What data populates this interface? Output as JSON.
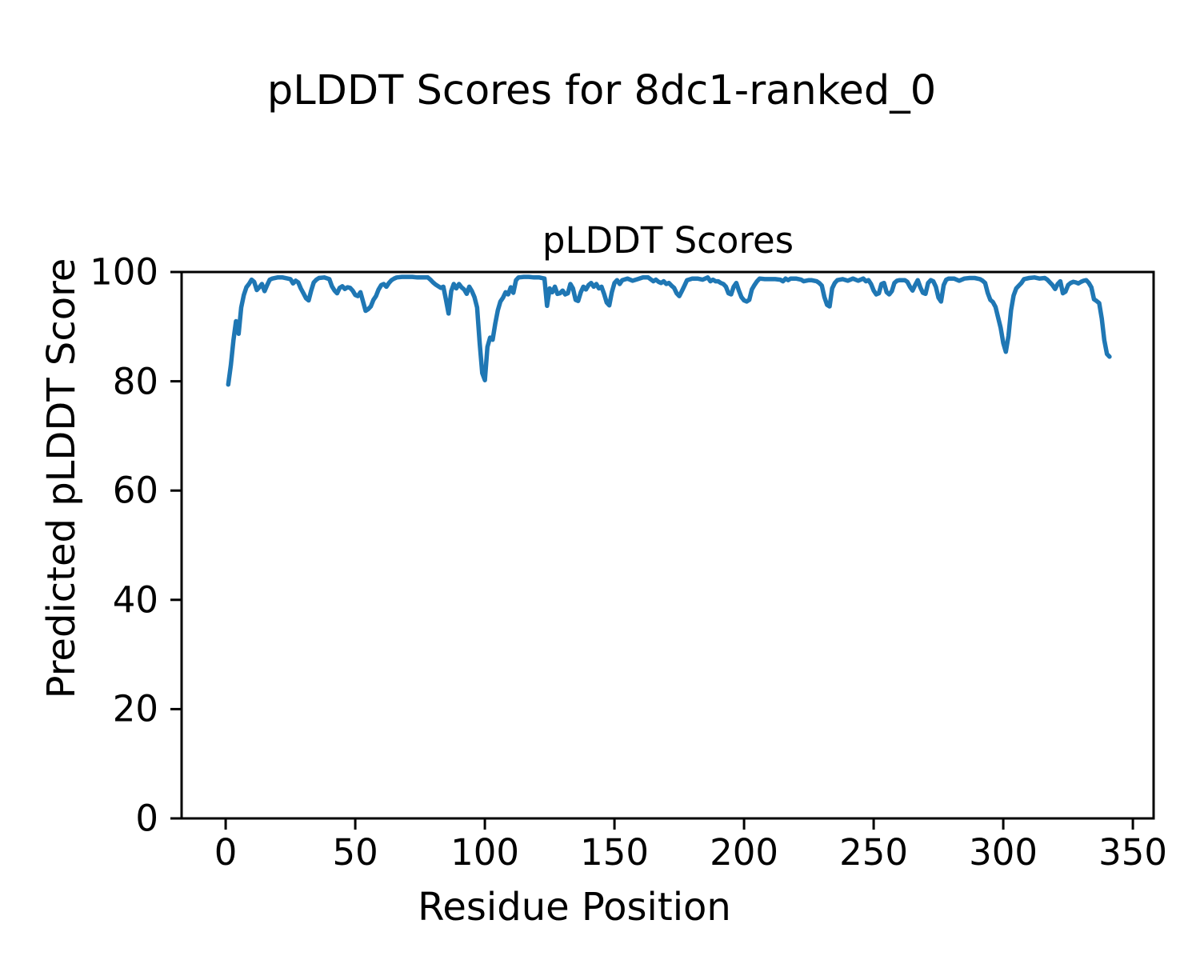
{
  "suptitle": "pLDDT Scores for 8dc1-ranked_0",
  "chart_data": {
    "type": "line",
    "title": "pLDDT Scores",
    "xlabel": "Residue Position",
    "ylabel": "Predicted pLDDT Score",
    "xlim": [
      -17,
      358
    ],
    "ylim": [
      0,
      100
    ],
    "xticks": [
      0,
      50,
      100,
      150,
      200,
      250,
      300,
      350
    ],
    "yticks": [
      0,
      20,
      40,
      60,
      80,
      100
    ],
    "grid": false,
    "legend_position": "none",
    "line_color": "#1f77b4",
    "axis_color": "#000000",
    "series": [
      {
        "name": "pLDDT",
        "x": [
          1,
          2,
          3,
          4,
          5,
          6,
          7,
          8,
          9,
          10,
          11,
          12,
          13,
          14,
          15,
          16,
          17,
          18,
          20,
          22,
          24,
          25,
          26,
          27,
          28,
          29,
          30,
          31,
          32,
          33,
          34,
          35,
          36,
          38,
          40,
          41,
          42,
          43,
          44,
          45,
          46,
          47,
          48,
          49,
          50,
          51,
          52,
          53,
          54,
          55,
          56,
          57,
          58,
          59,
          60,
          61,
          62,
          63,
          64,
          65,
          66,
          68,
          70,
          72,
          74,
          76,
          78,
          79,
          80,
          81,
          82,
          83,
          84,
          85,
          86,
          87,
          88,
          89,
          90,
          91,
          92,
          93,
          94,
          95,
          96,
          97,
          98,
          99,
          100,
          101,
          102,
          103,
          104,
          105,
          106,
          107,
          108,
          109,
          110,
          111,
          112,
          113,
          115,
          117,
          119,
          121,
          123,
          124,
          125,
          126,
          127,
          128,
          129,
          130,
          131,
          132,
          133,
          134,
          135,
          136,
          137,
          138,
          139,
          140,
          141,
          142,
          143,
          144,
          145,
          146,
          147,
          148,
          149,
          150,
          151,
          152,
          153,
          155,
          157,
          159,
          161,
          163,
          165,
          166,
          167,
          168,
          169,
          170,
          171,
          172,
          173,
          174,
          175,
          176,
          177,
          178,
          180,
          182,
          184,
          186,
          187,
          188,
          189,
          190,
          191,
          192,
          193,
          194,
          195,
          196,
          197,
          198,
          199,
          200,
          201,
          202,
          203,
          204,
          205,
          206,
          208,
          210,
          212,
          214,
          215,
          216,
          217,
          218,
          220,
          222,
          223,
          225,
          226,
          228,
          229,
          230,
          231,
          232,
          233,
          234,
          235,
          236,
          238,
          240,
          242,
          244,
          246,
          247,
          248,
          249,
          250,
          251,
          252,
          253,
          254,
          255,
          256,
          257,
          258,
          259,
          260,
          262,
          263,
          264,
          265,
          266,
          267,
          268,
          269,
          270,
          271,
          272,
          273,
          274,
          275,
          276,
          277,
          278,
          279,
          281,
          283,
          285,
          287,
          289,
          291,
          292,
          293,
          294,
          295,
          296,
          297,
          298,
          299,
          300,
          301,
          302,
          303,
          304,
          305,
          306,
          307,
          308,
          310,
          312,
          314,
          316,
          317,
          318,
          319,
          320,
          321,
          322,
          323,
          324,
          325,
          326,
          327,
          328,
          329,
          330,
          331,
          332,
          333,
          334,
          335,
          336,
          337,
          338,
          339,
          340,
          341
        ],
        "y": [
          79.4,
          83.0,
          87.5,
          91.0,
          88.7,
          93.5,
          95.8,
          97.2,
          97.8,
          98.6,
          98.2,
          96.7,
          97.2,
          97.8,
          96.5,
          97.6,
          98.6,
          98.8,
          99.0,
          99.0,
          98.8,
          98.7,
          97.9,
          98.4,
          98.1,
          97.0,
          96.1,
          95.2,
          94.8,
          96.6,
          98.1,
          98.6,
          98.9,
          99.0,
          98.7,
          97.4,
          96.6,
          96.1,
          97.1,
          97.4,
          96.9,
          97.2,
          97.1,
          96.6,
          95.8,
          95.6,
          96.3,
          94.6,
          92.9,
          93.2,
          93.7,
          94.9,
          95.6,
          96.8,
          97.6,
          97.8,
          97.3,
          98.0,
          98.5,
          98.8,
          99.0,
          99.1,
          99.1,
          99.1,
          99.0,
          99.0,
          99.0,
          98.6,
          98.1,
          97.7,
          97.4,
          97.1,
          97.3,
          94.9,
          92.4,
          96.5,
          97.8,
          97.0,
          97.8,
          97.2,
          96.8,
          96.0,
          97.3,
          96.5,
          95.4,
          93.5,
          87.0,
          81.5,
          80.2,
          86.3,
          88.0,
          87.6,
          90.5,
          93.0,
          94.6,
          95.3,
          96.3,
          95.9,
          97.2,
          96.2,
          98.5,
          99.0,
          99.1,
          99.1,
          99.0,
          99.0,
          98.8,
          93.8,
          97.0,
          96.3,
          97.3,
          96.0,
          96.1,
          96.6,
          95.9,
          96.1,
          97.8,
          97.0,
          94.9,
          94.7,
          96.3,
          97.3,
          96.8,
          97.6,
          98.0,
          97.3,
          97.8,
          97.0,
          97.3,
          96.0,
          94.4,
          93.9,
          96.3,
          98.0,
          98.5,
          97.8,
          98.5,
          98.8,
          98.4,
          98.7,
          99.0,
          99.0,
          98.3,
          98.6,
          98.2,
          98.0,
          98.3,
          97.8,
          98.0,
          97.5,
          97.1,
          96.1,
          95.6,
          96.5,
          97.5,
          98.5,
          98.8,
          98.8,
          98.6,
          99.0,
          98.3,
          98.6,
          98.3,
          98.3,
          98.0,
          97.8,
          97.3,
          96.1,
          95.9,
          97.3,
          98.0,
          96.6,
          95.4,
          94.8,
          94.6,
          94.9,
          96.8,
          97.6,
          98.3,
          98.8,
          98.7,
          98.7,
          98.7,
          98.6,
          98.3,
          98.8,
          98.5,
          98.8,
          98.8,
          98.6,
          98.3,
          98.5,
          98.5,
          98.3,
          98.0,
          97.5,
          95.4,
          94.0,
          93.7,
          97.0,
          98.0,
          98.5,
          98.7,
          98.4,
          98.8,
          98.4,
          98.8,
          98.3,
          98.5,
          97.8,
          96.6,
          95.9,
          96.1,
          97.8,
          98.0,
          96.3,
          95.9,
          96.5,
          98.0,
          98.4,
          98.5,
          98.5,
          98.2,
          97.3,
          96.6,
          97.6,
          98.5,
          97.2,
          96.2,
          96.0,
          98.0,
          98.5,
          98.3,
          97.3,
          95.3,
          94.6,
          97.6,
          98.6,
          98.8,
          98.8,
          98.4,
          98.8,
          98.9,
          98.9,
          98.7,
          98.4,
          98.0,
          96.2,
          94.9,
          94.5,
          93.6,
          91.7,
          89.8,
          87.0,
          85.4,
          88.3,
          93.0,
          95.7,
          97.0,
          97.5,
          98.0,
          98.7,
          98.9,
          99.0,
          98.8,
          98.9,
          98.6,
          98.1,
          97.6,
          96.9,
          97.8,
          98.3,
          96.1,
          96.4,
          97.6,
          98.0,
          98.2,
          98.1,
          97.9,
          98.2,
          98.4,
          98.5,
          98.0,
          97.2,
          95.0,
          94.7,
          94.3,
          91.5,
          87.5,
          85.0,
          84.5
        ]
      }
    ]
  }
}
